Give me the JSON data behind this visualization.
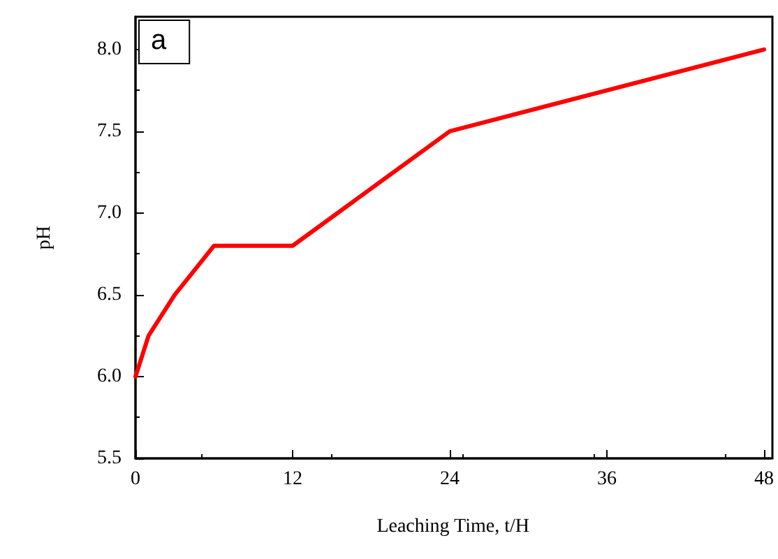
{
  "chart_data": {
    "type": "line",
    "xlabel": "Leaching Time, t/H",
    "ylabel": "pH",
    "annotations": [
      "a"
    ],
    "x": [
      0,
      1,
      3,
      6,
      12,
      24,
      48
    ],
    "series": [
      {
        "color": "#ff0000",
        "values": [
          6.0,
          6.25,
          6.5,
          6.8,
          6.8,
          7.5,
          8.0
        ]
      }
    ],
    "xlim": [
      0,
      48.5
    ],
    "ylim": [
      5.5,
      8.2
    ],
    "xticks": [
      0,
      12,
      24,
      36,
      48
    ],
    "yticks": [
      5.5,
      {
        "value": 6,
        "label": "6.0"
      },
      6.5,
      {
        "value": 7,
        "label": "7.0"
      },
      7.5,
      {
        "value": 8,
        "label": "8.0"
      }
    ],
    "marker": "none",
    "line_style": "solid"
  }
}
